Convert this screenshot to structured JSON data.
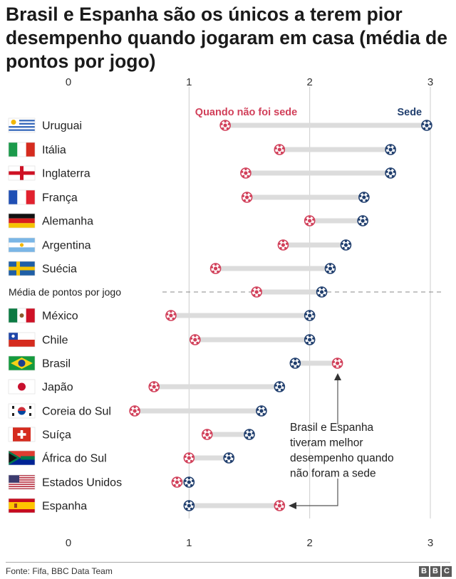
{
  "title": "Brasil e Espanha são os únicos a terem pior desempenho quando jogaram em casa (média de pontos por jogo)",
  "chart_data": {
    "type": "dumbbell",
    "title": "Brasil e Espanha são os únicos a terem pior desempenho quando jogaram em casa (média de pontos por jogo)",
    "xlim": [
      0,
      3
    ],
    "xticks": [
      0,
      1,
      2,
      3
    ],
    "xtick_labels": [
      "0",
      "1",
      "2",
      "3"
    ],
    "series": [
      {
        "name": "Quando não foi sede",
        "color": "#d1405a"
      },
      {
        "name": "Sede",
        "color": "#213f6e"
      }
    ],
    "rows": [
      {
        "country": "Uruguai",
        "flag": "uruguay",
        "away": 1.3,
        "host": 2.97
      },
      {
        "country": "Itália",
        "flag": "italy",
        "away": 1.75,
        "host": 2.67
      },
      {
        "country": "Inglaterra",
        "flag": "england",
        "away": 1.47,
        "host": 2.67
      },
      {
        "country": "França",
        "flag": "france",
        "away": 1.48,
        "host": 2.45
      },
      {
        "country": "Alemanha",
        "flag": "germany",
        "away": 2.0,
        "host": 2.44
      },
      {
        "country": "Argentina",
        "flag": "argentina",
        "away": 1.78,
        "host": 2.3
      },
      {
        "country": "Suécia",
        "flag": "sweden",
        "away": 1.22,
        "host": 2.17
      },
      {
        "country": "Média de pontos por jogo",
        "flag": "",
        "away": 1.56,
        "host": 2.1,
        "is_average": true
      },
      {
        "country": "México",
        "flag": "mexico",
        "away": 0.85,
        "host": 2.0
      },
      {
        "country": "Chile",
        "flag": "chile",
        "away": 1.05,
        "host": 2.0
      },
      {
        "country": "Brasil",
        "flag": "brazil",
        "away": 2.23,
        "host": 1.88
      },
      {
        "country": "Japão",
        "flag": "japan",
        "away": 0.71,
        "host": 1.75
      },
      {
        "country": "Coreia do Sul",
        "flag": "southkorea",
        "away": 0.55,
        "host": 1.6
      },
      {
        "country": "Suíça",
        "flag": "switzerland",
        "away": 1.15,
        "host": 1.5
      },
      {
        "country": "África do Sul",
        "flag": "southafrica",
        "away": 1.0,
        "host": 1.33
      },
      {
        "country": "Estados Unidos",
        "flag": "usa",
        "away": 0.9,
        "host": 1.0
      },
      {
        "country": "Espanha",
        "flag": "spain",
        "away": 1.75,
        "host": 1.0
      }
    ],
    "annotation": "Brasil e Espanha tiveram melhor desempenho quando não foram a sede"
  },
  "annotation_lines": [
    "Brasil e Espanha",
    "tiveram melhor",
    "desempenho quando",
    "não foram a sede"
  ],
  "footer": {
    "source": "Fonte: Fifa, BBC Data Team",
    "logo_letters": [
      "B",
      "B",
      "C"
    ]
  },
  "colors": {
    "away": "#d1405a",
    "host": "#213f6e",
    "connector": "#dcdcdc",
    "gridline": "#cccccc",
    "average_line": "#888888"
  }
}
